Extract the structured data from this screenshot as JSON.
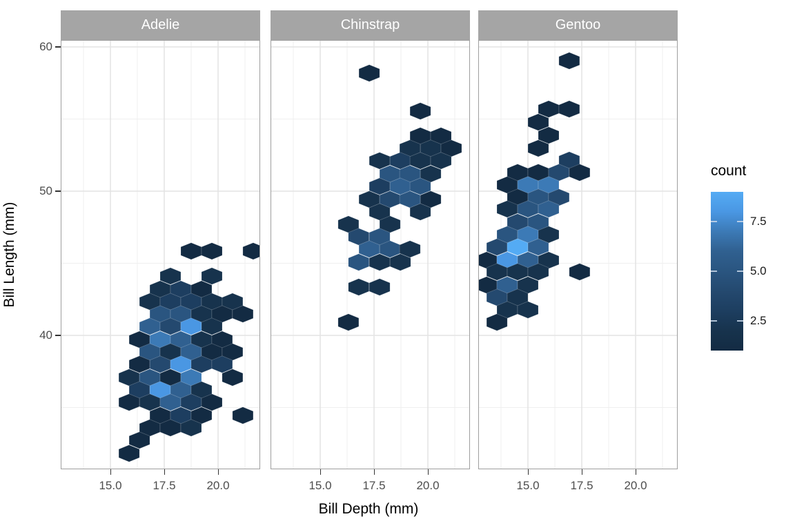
{
  "facets": [
    {
      "label": "Adelie"
    },
    {
      "label": "Chinstrap"
    },
    {
      "label": "Gentoo"
    }
  ],
  "axes": {
    "x": {
      "title": "Bill Depth (mm)",
      "tick_labels": [
        "15.0",
        "17.5",
        "20.0"
      ],
      "tick_values": [
        15.0,
        17.5,
        20.0
      ]
    },
    "y": {
      "title": "Bill Length (mm)",
      "tick_labels": [
        "60",
        "50",
        "40"
      ],
      "tick_values": [
        60,
        50,
        40
      ]
    }
  },
  "legend": {
    "title": "count",
    "tick_labels": [
      "7.5",
      "5.0",
      "2.5"
    ],
    "tick_values": [
      7.5,
      5.0,
      2.5
    ],
    "min_count": 1,
    "max_count": 9,
    "low_color": "#132B43",
    "high_color": "#56B1F7"
  },
  "colors": {
    "background": "#FFFFFF",
    "strip_bg": "#A5A5A5",
    "strip_text": "#FFFFFF",
    "panel_border": "#9E9E9E",
    "grid_major": "#E3E3E3",
    "grid_minor": "#EFEFEF",
    "tick_mark": "#333333",
    "tick_label": "#4D4D4D",
    "axis_title": "#000000",
    "legend_tick": "#C9D8EA",
    "count_scale": [
      "#132B43",
      "#17334D",
      "#1D3E60",
      "#24496F",
      "#2A5580",
      "#306090",
      "#3C7AB6",
      "#4A97E3",
      "#54ABF4"
    ]
  },
  "chart_data": {
    "type": "hexbin",
    "title": "",
    "xlabel": "Bill Depth (mm)",
    "ylabel": "Bill Length (mm)",
    "facet_variable_values": [
      "Adelie",
      "Chinstrap",
      "Gentoo"
    ],
    "x_range": [
      12.6,
      21.9
    ],
    "y_range": [
      30.8,
      60.5
    ],
    "x_major_breaks": [
      15.0,
      17.5,
      20.0
    ],
    "x_minor_breaks": [
      13.75,
      16.25,
      18.75,
      21.25
    ],
    "y_major_breaks": [
      60,
      50,
      40
    ],
    "y_minor_breaks": [
      55,
      45,
      35
    ],
    "grid": "on",
    "legend_position": "right",
    "fill_label": "count",
    "fill_range": [
      1,
      9
    ],
    "hex_note": "each hex = [bill_depth_mm, bill_length_mm, count]",
    "facets": [
      {
        "name": "Adelie",
        "hexes": [
          [
            18.75,
            45.84,
            1
          ],
          [
            19.71,
            45.84,
            1
          ],
          [
            21.63,
            45.84,
            1
          ],
          [
            17.79,
            44.11,
            2
          ],
          [
            19.71,
            44.11,
            2
          ],
          [
            17.31,
            43.2,
            2
          ],
          [
            18.27,
            43.2,
            3
          ],
          [
            19.23,
            43.2,
            1
          ],
          [
            16.83,
            42.34,
            2
          ],
          [
            17.79,
            42.34,
            3
          ],
          [
            18.75,
            42.34,
            3
          ],
          [
            19.71,
            42.34,
            2
          ],
          [
            20.67,
            42.34,
            2
          ],
          [
            17.31,
            41.48,
            5
          ],
          [
            18.27,
            41.48,
            5
          ],
          [
            19.23,
            41.48,
            2
          ],
          [
            20.19,
            41.48,
            1
          ],
          [
            21.15,
            41.48,
            1
          ],
          [
            16.83,
            40.62,
            6
          ],
          [
            17.79,
            40.62,
            4
          ],
          [
            18.75,
            40.62,
            8
          ],
          [
            19.71,
            40.62,
            2
          ],
          [
            16.35,
            39.71,
            1
          ],
          [
            17.31,
            39.71,
            7
          ],
          [
            18.27,
            39.71,
            6
          ],
          [
            19.23,
            39.71,
            2
          ],
          [
            20.19,
            39.71,
            1
          ],
          [
            16.83,
            38.85,
            5
          ],
          [
            17.79,
            38.85,
            2
          ],
          [
            18.75,
            38.85,
            6
          ],
          [
            19.71,
            38.85,
            1
          ],
          [
            20.67,
            38.85,
            1
          ],
          [
            16.35,
            37.99,
            1
          ],
          [
            17.31,
            37.99,
            4
          ],
          [
            18.27,
            37.99,
            8
          ],
          [
            19.23,
            37.99,
            3
          ],
          [
            20.19,
            37.99,
            3
          ],
          [
            15.87,
            37.08,
            2
          ],
          [
            16.83,
            37.08,
            5
          ],
          [
            17.79,
            37.08,
            1
          ],
          [
            18.75,
            37.08,
            7
          ],
          [
            20.67,
            37.08,
            1
          ],
          [
            16.35,
            36.22,
            3
          ],
          [
            17.31,
            36.22,
            8
          ],
          [
            18.27,
            36.22,
            6
          ],
          [
            19.23,
            36.22,
            2
          ],
          [
            15.87,
            35.36,
            1
          ],
          [
            16.83,
            35.36,
            2
          ],
          [
            17.79,
            35.36,
            6
          ],
          [
            18.75,
            35.36,
            3
          ],
          [
            19.71,
            35.36,
            1
          ],
          [
            17.31,
            34.45,
            1
          ],
          [
            18.27,
            34.45,
            3
          ],
          [
            19.23,
            34.45,
            1
          ],
          [
            21.15,
            34.45,
            1
          ],
          [
            16.83,
            33.59,
            1
          ],
          [
            17.79,
            33.59,
            1
          ],
          [
            18.75,
            33.59,
            2
          ],
          [
            16.35,
            32.73,
            1
          ],
          [
            15.87,
            31.82,
            1
          ]
        ]
      },
      {
        "name": "Chinstrap",
        "hexes": [
          [
            17.28,
            58.18,
            1
          ],
          [
            19.65,
            55.55,
            1
          ],
          [
            19.65,
            53.83,
            1
          ],
          [
            20.61,
            53.83,
            1
          ],
          [
            19.17,
            52.97,
            2
          ],
          [
            20.13,
            52.97,
            2
          ],
          [
            21.09,
            52.97,
            1
          ],
          [
            17.76,
            52.11,
            2
          ],
          [
            18.72,
            52.11,
            3
          ],
          [
            19.65,
            52.11,
            2
          ],
          [
            20.61,
            52.11,
            2
          ],
          [
            18.24,
            51.2,
            5
          ],
          [
            19.17,
            51.2,
            5
          ],
          [
            20.13,
            51.2,
            2
          ],
          [
            17.76,
            50.33,
            3
          ],
          [
            18.72,
            50.33,
            6
          ],
          [
            19.65,
            50.33,
            5
          ],
          [
            17.28,
            49.43,
            2
          ],
          [
            18.24,
            49.43,
            4
          ],
          [
            19.17,
            49.43,
            5
          ],
          [
            20.13,
            49.43,
            1
          ],
          [
            17.76,
            48.56,
            2
          ],
          [
            19.65,
            48.56,
            2
          ],
          [
            16.31,
            47.7,
            2
          ],
          [
            18.24,
            47.7,
            2
          ],
          [
            16.79,
            46.84,
            4
          ],
          [
            17.76,
            46.84,
            5
          ],
          [
            17.28,
            45.98,
            6
          ],
          [
            18.24,
            45.98,
            5
          ],
          [
            19.17,
            45.98,
            2
          ],
          [
            16.79,
            45.07,
            5
          ],
          [
            17.76,
            45.07,
            2
          ],
          [
            18.72,
            45.07,
            2
          ],
          [
            16.79,
            43.35,
            2
          ],
          [
            17.76,
            43.35,
            2
          ],
          [
            16.31,
            40.91,
            1
          ]
        ]
      },
      {
        "name": "Gentoo",
        "hexes": [
          [
            16.92,
            59.04,
            1
          ],
          [
            15.96,
            55.69,
            1
          ],
          [
            16.92,
            55.69,
            1
          ],
          [
            15.48,
            54.78,
            1
          ],
          [
            15.96,
            53.87,
            1
          ],
          [
            15.48,
            52.97,
            1
          ],
          [
            16.92,
            52.15,
            3
          ],
          [
            14.52,
            51.29,
            1
          ],
          [
            15.48,
            51.29,
            1
          ],
          [
            16.44,
            51.29,
            4
          ],
          [
            17.4,
            51.29,
            1
          ],
          [
            14.04,
            50.43,
            1
          ],
          [
            15.0,
            50.43,
            7
          ],
          [
            15.96,
            50.43,
            7
          ],
          [
            14.52,
            49.57,
            1
          ],
          [
            15.48,
            49.57,
            5
          ],
          [
            16.44,
            49.57,
            4
          ],
          [
            14.04,
            48.76,
            2
          ],
          [
            15.0,
            48.76,
            5
          ],
          [
            15.96,
            48.76,
            6
          ],
          [
            14.52,
            47.85,
            4
          ],
          [
            15.48,
            47.85,
            5
          ],
          [
            14.04,
            46.99,
            5
          ],
          [
            15.0,
            46.99,
            7
          ],
          [
            15.96,
            46.99,
            2
          ],
          [
            13.56,
            46.12,
            4
          ],
          [
            14.52,
            46.12,
            9
          ],
          [
            15.48,
            46.12,
            6
          ],
          [
            13.08,
            45.21,
            1
          ],
          [
            14.04,
            45.21,
            8
          ],
          [
            15.0,
            45.21,
            6
          ],
          [
            15.96,
            45.21,
            2
          ],
          [
            13.56,
            44.4,
            2
          ],
          [
            14.52,
            44.4,
            2
          ],
          [
            15.48,
            44.4,
            2
          ],
          [
            17.4,
            44.4,
            1
          ],
          [
            13.08,
            43.49,
            1
          ],
          [
            14.04,
            43.49,
            6
          ],
          [
            15.0,
            43.49,
            2
          ],
          [
            13.56,
            42.63,
            4
          ],
          [
            14.52,
            42.63,
            2
          ],
          [
            14.04,
            41.77,
            2
          ],
          [
            15.0,
            41.77,
            2
          ],
          [
            13.56,
            40.91,
            1
          ]
        ]
      }
    ]
  }
}
